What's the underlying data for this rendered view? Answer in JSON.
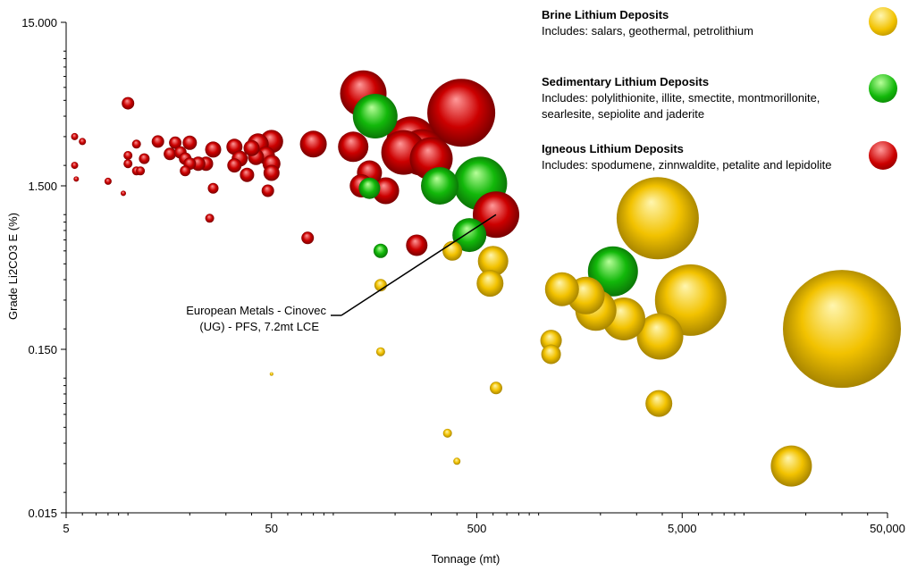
{
  "chart_data": {
    "type": "scatter",
    "bubble": true,
    "xlabel": "Tonnage (mt)",
    "ylabel": "Grade Li2CO3 E (%)",
    "xscale": "log",
    "yscale": "log",
    "xlim": [
      5,
      50000
    ],
    "ylim": [
      0.015,
      15
    ],
    "xticks": [
      "5",
      "50",
      "500",
      "5,000",
      "50,000"
    ],
    "yticks": [
      "15.000",
      "1.500",
      "0.150",
      "0.015"
    ],
    "grid": false,
    "legend_position": "top-right",
    "series": [
      {
        "name": "Brine Lithium Deposits",
        "description": "Includes: salars, geothermal, petrolithium",
        "color": "#f2c200",
        "points": [
          {
            "x": 3800,
            "y": 0.95,
            "size": 46
          },
          {
            "x": 30000,
            "y": 0.2,
            "size": 66
          },
          {
            "x": 5500,
            "y": 0.3,
            "size": 40
          },
          {
            "x": 3900,
            "y": 0.18,
            "size": 26
          },
          {
            "x": 2600,
            "y": 0.23,
            "size": 24
          },
          {
            "x": 1700,
            "y": 0.32,
            "size": 21
          },
          {
            "x": 1900,
            "y": 0.26,
            "size": 23
          },
          {
            "x": 1300,
            "y": 0.35,
            "size": 19
          },
          {
            "x": 600,
            "y": 0.52,
            "size": 17
          },
          {
            "x": 580,
            "y": 0.38,
            "size": 15
          },
          {
            "x": 1150,
            "y": 0.17,
            "size": 12
          },
          {
            "x": 1150,
            "y": 0.14,
            "size": 11
          },
          {
            "x": 380,
            "y": 0.6,
            "size": 11
          },
          {
            "x": 3850,
            "y": 0.07,
            "size": 15
          },
          {
            "x": 17000,
            "y": 0.029,
            "size": 23
          },
          {
            "x": 620,
            "y": 0.087,
            "size": 7
          },
          {
            "x": 360,
            "y": 0.046,
            "size": 5
          },
          {
            "x": 400,
            "y": 0.031,
            "size": 4
          },
          {
            "x": 170,
            "y": 0.37,
            "size": 7
          },
          {
            "x": 170,
            "y": 0.145,
            "size": 5
          },
          {
            "x": 50,
            "y": 0.106,
            "size": 2
          }
        ]
      },
      {
        "name": "Sedimentary Lithium Deposits",
        "description": "Includes: polylithionite, illite, smectite, montmorillonite, searlesite, sepiolite and jaderite",
        "color": "#12b80a",
        "points": [
          {
            "x": 520,
            "y": 1.55,
            "size": 30
          },
          {
            "x": 2300,
            "y": 0.45,
            "size": 28
          },
          {
            "x": 160,
            "y": 4.0,
            "size": 25
          },
          {
            "x": 330,
            "y": 1.5,
            "size": 21
          },
          {
            "x": 460,
            "y": 0.75,
            "size": 19
          },
          {
            "x": 150,
            "y": 1.45,
            "size": 12
          },
          {
            "x": 170,
            "y": 0.6,
            "size": 8
          }
        ]
      },
      {
        "name": "Igneous Lithium Deposits",
        "description": "Includes: spodumene, zinnwaldite, petalite and lepidolite",
        "color": "#cc0000",
        "points": [
          {
            "x": 420,
            "y": 4.2,
            "size": 38
          },
          {
            "x": 240,
            "y": 2.8,
            "size": 28
          },
          {
            "x": 270,
            "y": 2.4,
            "size": 26
          },
          {
            "x": 220,
            "y": 2.4,
            "size": 25
          },
          {
            "x": 300,
            "y": 2.2,
            "size": 24
          },
          {
            "x": 140,
            "y": 5.5,
            "size": 26
          },
          {
            "x": 620,
            "y": 1.0,
            "size": 26
          },
          {
            "x": 125,
            "y": 2.6,
            "size": 17
          },
          {
            "x": 80,
            "y": 2.7,
            "size": 15
          },
          {
            "x": 150,
            "y": 1.8,
            "size": 14
          },
          {
            "x": 180,
            "y": 1.4,
            "size": 15
          },
          {
            "x": 137,
            "y": 1.5,
            "size": 13
          },
          {
            "x": 255,
            "y": 0.65,
            "size": 12
          },
          {
            "x": 50,
            "y": 2.8,
            "size": 13
          },
          {
            "x": 43,
            "y": 2.7,
            "size": 12
          },
          {
            "x": 47,
            "y": 2.3,
            "size": 10
          },
          {
            "x": 50,
            "y": 2.05,
            "size": 10
          },
          {
            "x": 50,
            "y": 1.8,
            "size": 9
          },
          {
            "x": 42,
            "y": 2.25,
            "size": 9
          },
          {
            "x": 40,
            "y": 2.55,
            "size": 9
          },
          {
            "x": 33,
            "y": 2.6,
            "size": 9
          },
          {
            "x": 35,
            "y": 2.2,
            "size": 9
          },
          {
            "x": 38,
            "y": 1.75,
            "size": 8
          },
          {
            "x": 33,
            "y": 2.0,
            "size": 8
          },
          {
            "x": 26,
            "y": 2.5,
            "size": 9
          },
          {
            "x": 24,
            "y": 2.05,
            "size": 8
          },
          {
            "x": 22,
            "y": 2.05,
            "size": 8
          },
          {
            "x": 20,
            "y": 2.75,
            "size": 8
          },
          {
            "x": 17,
            "y": 2.75,
            "size": 7
          },
          {
            "x": 16,
            "y": 2.35,
            "size": 7
          },
          {
            "x": 18,
            "y": 2.4,
            "size": 7
          },
          {
            "x": 19,
            "y": 2.2,
            "size": 7
          },
          {
            "x": 20,
            "y": 2.05,
            "size": 7
          },
          {
            "x": 19,
            "y": 1.85,
            "size": 6
          },
          {
            "x": 14,
            "y": 2.8,
            "size": 7
          },
          {
            "x": 12,
            "y": 2.2,
            "size": 6
          },
          {
            "x": 10,
            "y": 4.8,
            "size": 7
          },
          {
            "x": 10,
            "y": 2.3,
            "size": 5
          },
          {
            "x": 11,
            "y": 2.7,
            "size": 5
          },
          {
            "x": 10,
            "y": 2.05,
            "size": 5
          },
          {
            "x": 11,
            "y": 1.85,
            "size": 5
          },
          {
            "x": 11.5,
            "y": 1.85,
            "size": 5
          },
          {
            "x": 5.5,
            "y": 3.0,
            "size": 4
          },
          {
            "x": 6,
            "y": 2.8,
            "size": 4
          },
          {
            "x": 5.5,
            "y": 2.0,
            "size": 4
          },
          {
            "x": 5.6,
            "y": 1.65,
            "size": 3
          },
          {
            "x": 8,
            "y": 1.6,
            "size": 4
          },
          {
            "x": 9.5,
            "y": 1.35,
            "size": 3
          },
          {
            "x": 26,
            "y": 1.45,
            "size": 6
          },
          {
            "x": 25,
            "y": 0.95,
            "size": 5
          },
          {
            "x": 48,
            "y": 1.4,
            "size": 7
          },
          {
            "x": 75,
            "y": 0.72,
            "size": 7
          }
        ]
      }
    ],
    "annotation": {
      "text_line1": "European Metals - Cinovec",
      "text_line2": "(UG) - PFS,  7.2mt LCE",
      "target": {
        "x": 620,
        "y": 1.0
      }
    }
  }
}
